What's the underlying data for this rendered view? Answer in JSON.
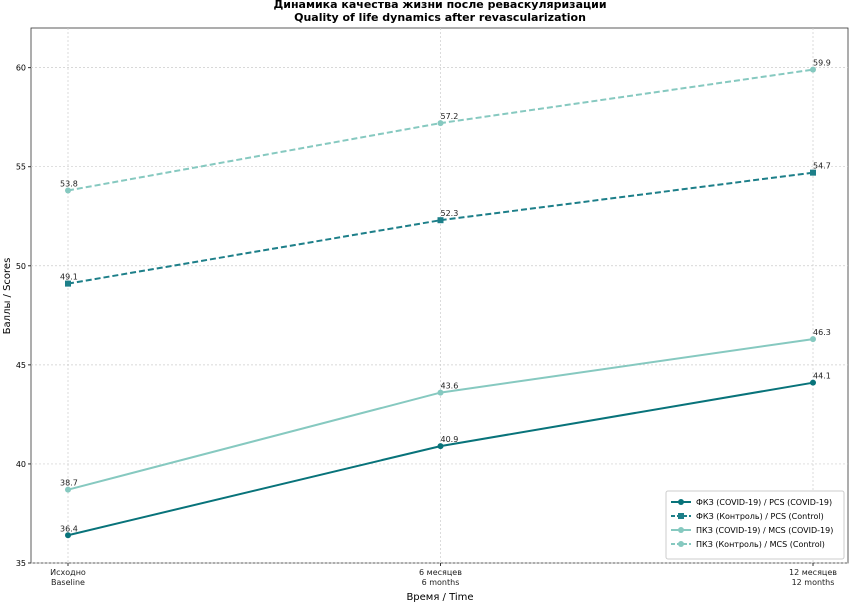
{
  "chart_data": {
    "type": "line",
    "title": "Динамика качества жизни после реваскуляризации",
    "subtitle": "Quality of life dynamics after revascularization",
    "x_label": "Время / Time",
    "y_label": "Баллы / Scores",
    "categories": [
      "Исходно\nBaseline",
      "6 месяцев\n6 months",
      "12 месяцев\n12 months"
    ],
    "series": [
      {
        "name": "ФКЗ (COVID-19) / PCS (COVID-19)",
        "color": "#08737a",
        "dashed": false,
        "marker": "circle",
        "values": [
          36.4,
          40.9,
          44.1
        ]
      },
      {
        "name": "ФКЗ (Контроль) / PCS (Control)",
        "color": "#1d7f89",
        "dashed": true,
        "marker": "square",
        "values": [
          49.1,
          52.3,
          54.7
        ]
      },
      {
        "name": "ПКЗ (COVID-19) / MCS (COVID-19)",
        "color": "#86c9c0",
        "dashed": false,
        "marker": "circle",
        "values": [
          38.7,
          43.6,
          46.3
        ]
      },
      {
        "name": "ПКЗ (Контроль) / MCS (Control)",
        "color": "#86c9c0",
        "dashed": true,
        "marker": "circle",
        "values": [
          53.8,
          57.2,
          59.9
        ]
      }
    ],
    "ylim": [
      35,
      62
    ],
    "yticks": [
      35,
      40,
      45,
      50,
      55,
      60
    ],
    "grid": true,
    "legend": "lower right"
  }
}
